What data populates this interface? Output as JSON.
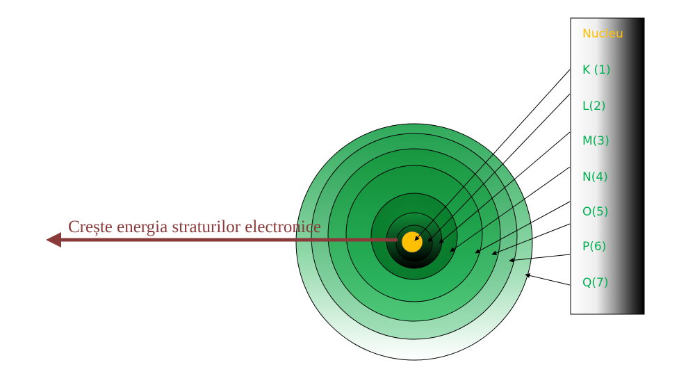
{
  "caption": "Crește energia straturilor electronice",
  "legend": {
    "nucleus_label": "Nucleu",
    "shell_labels": [
      "K (1)",
      "L(2)",
      "M(3)",
      "N(4)",
      "O(5)",
      "P(6)",
      "Q(7)"
    ]
  },
  "colors": {
    "caption": "#8b3a3a",
    "nucleus": "#ffc000",
    "shell_label": "#00b050",
    "outline": "#000000"
  }
}
